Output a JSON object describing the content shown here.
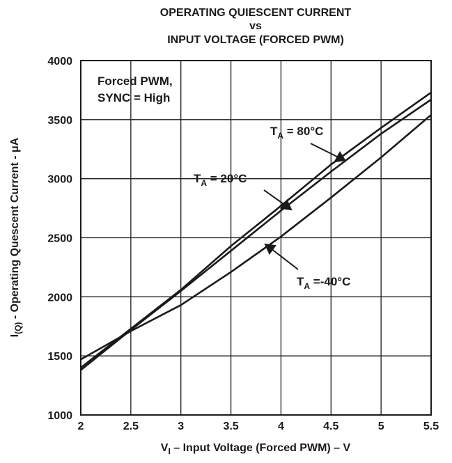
{
  "chart_data": {
    "type": "line",
    "title": [
      "OPERATING QUIESCENT CURRENT",
      "vs",
      "INPUT VOLTAGE (FORCED PWM)"
    ],
    "xlabel": {
      "main": "V",
      "sub": "I",
      "rest": " – Input Voltage (Forced PWM) – V"
    },
    "ylabel": {
      "main": "I",
      "sub": "(Q)",
      "rest": " - Operating Quescent Current - μA"
    },
    "xlim": [
      2,
      5.5
    ],
    "ylim": [
      1000,
      4000
    ],
    "xticks": [
      "2",
      "2.5",
      "3",
      "3.5",
      "4",
      "4.5",
      "5",
      "5.5"
    ],
    "yticks": [
      "1000",
      "1500",
      "2000",
      "2500",
      "3000",
      "3500",
      "4000"
    ],
    "grid": true,
    "annotations": [
      {
        "lines": [
          "Forced PWM,",
          "SYNC = High"
        ]
      }
    ],
    "series": [
      {
        "label": {
          "main": "T",
          "sub": "A",
          "rest": " = 80°C"
        },
        "x": [
          2,
          2.5,
          3,
          3.5,
          4,
          4.5,
          5,
          5.5
        ],
        "values": [
          1400,
          1730,
          2060,
          2430,
          2770,
          3120,
          3430,
          3730
        ]
      },
      {
        "label": {
          "main": "T",
          "sub": "A",
          "rest": " = 20°C"
        },
        "x": [
          2,
          2.5,
          3,
          3.5,
          4,
          4.5,
          5,
          5.5
        ],
        "values": [
          1380,
          1720,
          2050,
          2390,
          2730,
          3060,
          3380,
          3670
        ]
      },
      {
        "label": {
          "main": "T",
          "sub": "A",
          "rest": " =-40°C"
        },
        "x": [
          2,
          2.5,
          3,
          3.5,
          4,
          4.5,
          5,
          5.5
        ],
        "values": [
          1470,
          1710,
          1930,
          2210,
          2510,
          2840,
          3180,
          3540
        ]
      }
    ]
  }
}
